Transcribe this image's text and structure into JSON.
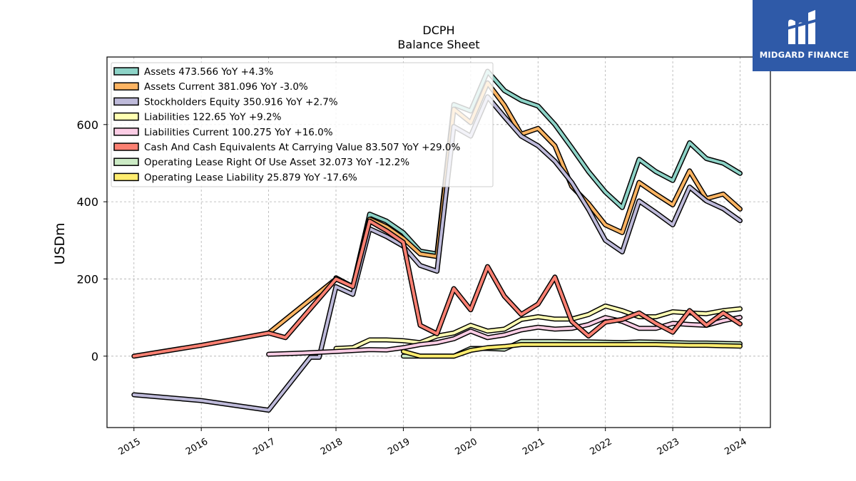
{
  "brand": {
    "name": "MIDGARD FINANCE",
    "logo_color": "#2f5aa8"
  },
  "chart_data": {
    "type": "line",
    "title": "DCPH",
    "subtitle": "Balance  Sheet",
    "ylabel": "USDm",
    "xlabel": "",
    "ylim": [
      -185,
      775
    ],
    "xlim": [
      2014.6,
      2024.45
    ],
    "yticks": [
      0,
      200,
      400,
      600
    ],
    "xticks": [
      "2015",
      "2016",
      "2017",
      "2018",
      "2019",
      "2020",
      "2021",
      "2022",
      "2023",
      "2024"
    ],
    "grid": true,
    "legend_position": "top-left",
    "series": [
      {
        "name": "Assets  473.566 YoY +4.3%",
        "color": "#8dd3c7",
        "points": [
          [
            2018.0,
            203
          ],
          [
            2018.25,
            180
          ],
          [
            2018.5,
            368
          ],
          [
            2018.75,
            350
          ],
          [
            2019.0,
            320
          ],
          [
            2019.25,
            272
          ],
          [
            2019.5,
            265
          ],
          [
            2019.75,
            652
          ],
          [
            2020.0,
            635
          ],
          [
            2020.25,
            738
          ],
          [
            2020.5,
            688
          ],
          [
            2020.75,
            663
          ],
          [
            2021.0,
            648
          ],
          [
            2021.25,
            600
          ],
          [
            2021.5,
            540
          ],
          [
            2021.75,
            478
          ],
          [
            2022.0,
            425
          ],
          [
            2022.25,
            385
          ],
          [
            2022.5,
            510
          ],
          [
            2022.75,
            478
          ],
          [
            2023.0,
            455
          ],
          [
            2023.25,
            553
          ],
          [
            2023.5,
            512
          ],
          [
            2023.75,
            500
          ],
          [
            2024.0,
            473.566
          ]
        ]
      },
      {
        "name": "Assets Current  381.096 YoY -3.0%",
        "color": "#fdb462",
        "points": [
          [
            2017.0,
            60
          ],
          [
            2018.0,
            200
          ],
          [
            2018.25,
            180
          ],
          [
            2018.5,
            355
          ],
          [
            2018.75,
            335
          ],
          [
            2019.0,
            305
          ],
          [
            2019.25,
            265
          ],
          [
            2019.5,
            258
          ],
          [
            2019.75,
            640
          ],
          [
            2020.0,
            605
          ],
          [
            2020.25,
            708
          ],
          [
            2020.5,
            650
          ],
          [
            2020.75,
            575
          ],
          [
            2021.0,
            590
          ],
          [
            2021.25,
            545
          ],
          [
            2021.5,
            440
          ],
          [
            2021.75,
            395
          ],
          [
            2022.0,
            340
          ],
          [
            2022.25,
            320
          ],
          [
            2022.5,
            450
          ],
          [
            2022.75,
            420
          ],
          [
            2023.0,
            392
          ],
          [
            2023.25,
            480
          ],
          [
            2023.5,
            408
          ],
          [
            2023.75,
            420
          ],
          [
            2024.0,
            381.096
          ]
        ]
      },
      {
        "name": "Stockholders Equity  350.916 YoY +2.7%",
        "color": "#bebada",
        "points": [
          [
            2015.0,
            -100
          ],
          [
            2016.0,
            -115
          ],
          [
            2017.0,
            -140
          ],
          [
            2017.62,
            -3
          ],
          [
            2017.75,
            -3
          ],
          [
            2018.0,
            180
          ],
          [
            2018.25,
            160
          ],
          [
            2018.5,
            330
          ],
          [
            2018.75,
            310
          ],
          [
            2019.0,
            285
          ],
          [
            2019.25,
            235
          ],
          [
            2019.5,
            220
          ],
          [
            2019.75,
            595
          ],
          [
            2020.0,
            570
          ],
          [
            2020.25,
            672
          ],
          [
            2020.5,
            620
          ],
          [
            2020.75,
            570
          ],
          [
            2021.0,
            545
          ],
          [
            2021.25,
            505
          ],
          [
            2021.5,
            450
          ],
          [
            2021.75,
            380
          ],
          [
            2022.0,
            300
          ],
          [
            2022.25,
            270
          ],
          [
            2022.5,
            402
          ],
          [
            2022.75,
            372
          ],
          [
            2023.0,
            340
          ],
          [
            2023.25,
            438
          ],
          [
            2023.5,
            402
          ],
          [
            2023.75,
            382
          ],
          [
            2024.0,
            350.916
          ]
        ]
      },
      {
        "name": "Liabilities  122.65 YoY +9.2%",
        "color": "#ffffb3",
        "points": [
          [
            2018.0,
            20
          ],
          [
            2018.25,
            22
          ],
          [
            2018.5,
            42
          ],
          [
            2018.75,
            42
          ],
          [
            2019.0,
            40
          ],
          [
            2019.25,
            35
          ],
          [
            2019.5,
            52
          ],
          [
            2019.75,
            60
          ],
          [
            2020.0,
            80
          ],
          [
            2020.25,
            65
          ],
          [
            2020.5,
            70
          ],
          [
            2020.75,
            95
          ],
          [
            2021.0,
            102
          ],
          [
            2021.25,
            96
          ],
          [
            2021.5,
            96
          ],
          [
            2021.75,
            108
          ],
          [
            2022.0,
            130
          ],
          [
            2022.25,
            118
          ],
          [
            2022.5,
            102
          ],
          [
            2022.75,
            102
          ],
          [
            2023.0,
            115
          ],
          [
            2023.25,
            112
          ],
          [
            2023.5,
            110
          ],
          [
            2023.75,
            118
          ],
          [
            2024.0,
            122.65
          ]
        ]
      },
      {
        "name": "Liabilities Current  100.275 YoY +16.0%",
        "color": "#fccde5",
        "points": [
          [
            2017.0,
            5
          ],
          [
            2017.5,
            8
          ],
          [
            2018.0,
            12
          ],
          [
            2018.5,
            17
          ],
          [
            2018.75,
            16
          ],
          [
            2019.0,
            22
          ],
          [
            2019.25,
            30
          ],
          [
            2019.5,
            35
          ],
          [
            2019.75,
            45
          ],
          [
            2020.0,
            65
          ],
          [
            2020.25,
            48
          ],
          [
            2020.5,
            55
          ],
          [
            2020.75,
            68
          ],
          [
            2021.0,
            75
          ],
          [
            2021.25,
            70
          ],
          [
            2021.5,
            72
          ],
          [
            2021.75,
            82
          ],
          [
            2022.0,
            100
          ],
          [
            2022.25,
            90
          ],
          [
            2022.5,
            72
          ],
          [
            2022.75,
            72
          ],
          [
            2023.0,
            85
          ],
          [
            2023.25,
            82
          ],
          [
            2023.5,
            80
          ],
          [
            2023.75,
            92
          ],
          [
            2024.0,
            100.275
          ]
        ]
      },
      {
        "name": "Cash And Cash Equivalents At Carrying Value  83.507 YoY +29.0%",
        "color": "#fb8072",
        "points": [
          [
            2015.0,
            0
          ],
          [
            2016.0,
            28
          ],
          [
            2017.0,
            60
          ],
          [
            2017.25,
            48
          ],
          [
            2018.0,
            200
          ],
          [
            2018.25,
            180
          ],
          [
            2018.5,
            350
          ],
          [
            2018.75,
            325
          ],
          [
            2019.0,
            295
          ],
          [
            2019.25,
            80
          ],
          [
            2019.5,
            58
          ],
          [
            2019.75,
            175
          ],
          [
            2020.0,
            120
          ],
          [
            2020.25,
            232
          ],
          [
            2020.5,
            155
          ],
          [
            2020.75,
            108
          ],
          [
            2021.0,
            135
          ],
          [
            2021.25,
            205
          ],
          [
            2021.5,
            90
          ],
          [
            2021.75,
            52
          ],
          [
            2022.0,
            88
          ],
          [
            2022.25,
            95
          ],
          [
            2022.5,
            112
          ],
          [
            2022.75,
            85
          ],
          [
            2023.0,
            62
          ],
          [
            2023.25,
            118
          ],
          [
            2023.5,
            80
          ],
          [
            2023.75,
            112
          ],
          [
            2024.0,
            83.507
          ]
        ]
      },
      {
        "name": "Operating Lease Right Of Use Asset  32.073 YoY -12.2%",
        "color": "#ccebc5",
        "points": [
          [
            2019.0,
            0
          ],
          [
            2019.25,
            0
          ],
          [
            2019.5,
            0
          ],
          [
            2019.75,
            0
          ],
          [
            2020.0,
            20
          ],
          [
            2020.25,
            20
          ],
          [
            2020.5,
            18
          ],
          [
            2020.75,
            38
          ],
          [
            2021.0,
            38
          ],
          [
            2021.25,
            38
          ],
          [
            2021.5,
            37
          ],
          [
            2021.75,
            37
          ],
          [
            2022.0,
            36
          ],
          [
            2022.25,
            35
          ],
          [
            2022.5,
            37
          ],
          [
            2022.75,
            36
          ],
          [
            2023.0,
            35
          ],
          [
            2023.25,
            34
          ],
          [
            2023.5,
            34
          ],
          [
            2023.75,
            33
          ],
          [
            2024.0,
            32.073
          ]
        ]
      },
      {
        "name": "Operating Lease Liability  25.879 YoY -17.6%",
        "color": "#ffed6f",
        "points": [
          [
            2019.0,
            12
          ],
          [
            2019.25,
            0
          ],
          [
            2019.5,
            0
          ],
          [
            2019.75,
            0
          ],
          [
            2020.0,
            15
          ],
          [
            2020.25,
            22
          ],
          [
            2020.5,
            25
          ],
          [
            2020.75,
            30
          ],
          [
            2021.0,
            30
          ],
          [
            2021.25,
            30
          ],
          [
            2021.5,
            30
          ],
          [
            2021.75,
            30
          ],
          [
            2022.0,
            30
          ],
          [
            2022.25,
            30
          ],
          [
            2022.5,
            30
          ],
          [
            2022.75,
            30
          ],
          [
            2023.0,
            29
          ],
          [
            2023.25,
            28
          ],
          [
            2023.5,
            28
          ],
          [
            2023.75,
            27
          ],
          [
            2024.0,
            25.879
          ]
        ]
      }
    ]
  }
}
